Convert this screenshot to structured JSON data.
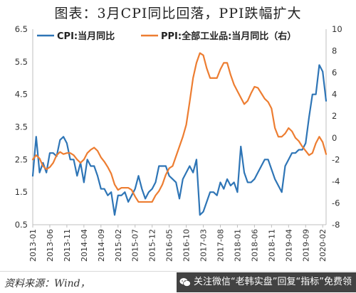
{
  "title": "图表：3月CPI同比回落，PPI跌幅扩大",
  "source_text": "资料来源：Wind，",
  "watermark_text": "关注微信“老韩实盘”回复“指标”免费领",
  "chart_data": {
    "type": "line",
    "title": "",
    "xlabel": "",
    "ylabel": "",
    "left_axis": {
      "min": 0.5,
      "max": 6.5,
      "ticks": [
        "0.5",
        "1.5",
        "2.5",
        "3.5",
        "4.5",
        "5.5",
        "6.5"
      ]
    },
    "right_axis": {
      "min": -8,
      "max": 10,
      "ticks": [
        "-8",
        "-6",
        "-4",
        "-2",
        "0",
        "2",
        "4",
        "6",
        "8",
        "10"
      ]
    },
    "x_tick_labels": [
      "2013-01",
      "2013-06",
      "2013-11",
      "2014-04",
      "2014-09",
      "2015-02",
      "2015-07",
      "2015-12",
      "2016-05",
      "2016-10",
      "2017-03",
      "2017-08",
      "2018-01",
      "2018-06",
      "2018-11",
      "2019-04",
      "2019-09",
      "2020-02"
    ],
    "x_start": "2013-01",
    "legend_position": "top",
    "grid": false,
    "series": [
      {
        "name": "CPI:当月同比",
        "axis": "left",
        "color": "#2e75b6",
        "values": [
          2.0,
          3.2,
          2.1,
          2.4,
          2.1,
          2.7,
          2.7,
          2.6,
          3.1,
          3.2,
          3.0,
          2.5,
          2.5,
          2.0,
          2.4,
          1.8,
          2.5,
          2.3,
          2.3,
          2.0,
          1.6,
          1.6,
          1.4,
          1.5,
          0.8,
          1.4,
          1.4,
          1.5,
          1.2,
          1.4,
          1.6,
          2.0,
          1.6,
          1.3,
          1.5,
          1.6,
          1.8,
          2.3,
          2.3,
          2.3,
          2.0,
          1.9,
          1.8,
          1.3,
          1.9,
          2.1,
          2.3,
          2.1,
          2.5,
          0.8,
          0.9,
          1.2,
          1.5,
          1.5,
          1.4,
          1.8,
          1.6,
          1.9,
          1.7,
          1.8,
          1.5,
          2.9,
          2.1,
          1.8,
          1.8,
          1.9,
          2.1,
          2.3,
          2.5,
          2.5,
          2.2,
          1.9,
          1.7,
          1.5,
          2.3,
          2.5,
          2.7,
          2.7,
          2.8,
          2.8,
          3.0,
          3.8,
          4.5,
          4.5,
          5.4,
          5.2,
          4.3
        ]
      },
      {
        "name": "PPI:全部工业品:当月同比（右）",
        "axis": "right",
        "color": "#ed7d31",
        "values": [
          -2.0,
          -1.6,
          -1.9,
          -2.6,
          -2.9,
          -2.7,
          -2.3,
          -1.6,
          -1.3,
          -1.5,
          -1.4,
          -1.4,
          -1.6,
          -2.0,
          -2.3,
          -2.0,
          -1.4,
          -1.1,
          -0.9,
          -1.2,
          -1.8,
          -2.2,
          -2.7,
          -3.3,
          -4.3,
          -4.8,
          -4.6,
          -4.6,
          -4.6,
          -4.8,
          -5.4,
          -5.9,
          -5.9,
          -5.9,
          -5.9,
          -5.9,
          -5.3,
          -4.9,
          -4.3,
          -3.4,
          -2.8,
          -2.6,
          -1.7,
          -0.8,
          0.1,
          1.2,
          3.3,
          5.5,
          6.9,
          7.8,
          7.6,
          6.4,
          5.5,
          5.5,
          5.5,
          6.3,
          6.9,
          6.9,
          5.8,
          4.9,
          4.3,
          3.7,
          3.1,
          3.4,
          4.1,
          4.7,
          4.6,
          4.1,
          3.6,
          3.3,
          2.7,
          0.9,
          0.1,
          0.1,
          0.4,
          0.9,
          0.6,
          0.0,
          -0.3,
          -0.8,
          -1.2,
          -1.6,
          -1.4,
          -0.5,
          0.1,
          -0.4,
          -1.5
        ]
      }
    ]
  }
}
